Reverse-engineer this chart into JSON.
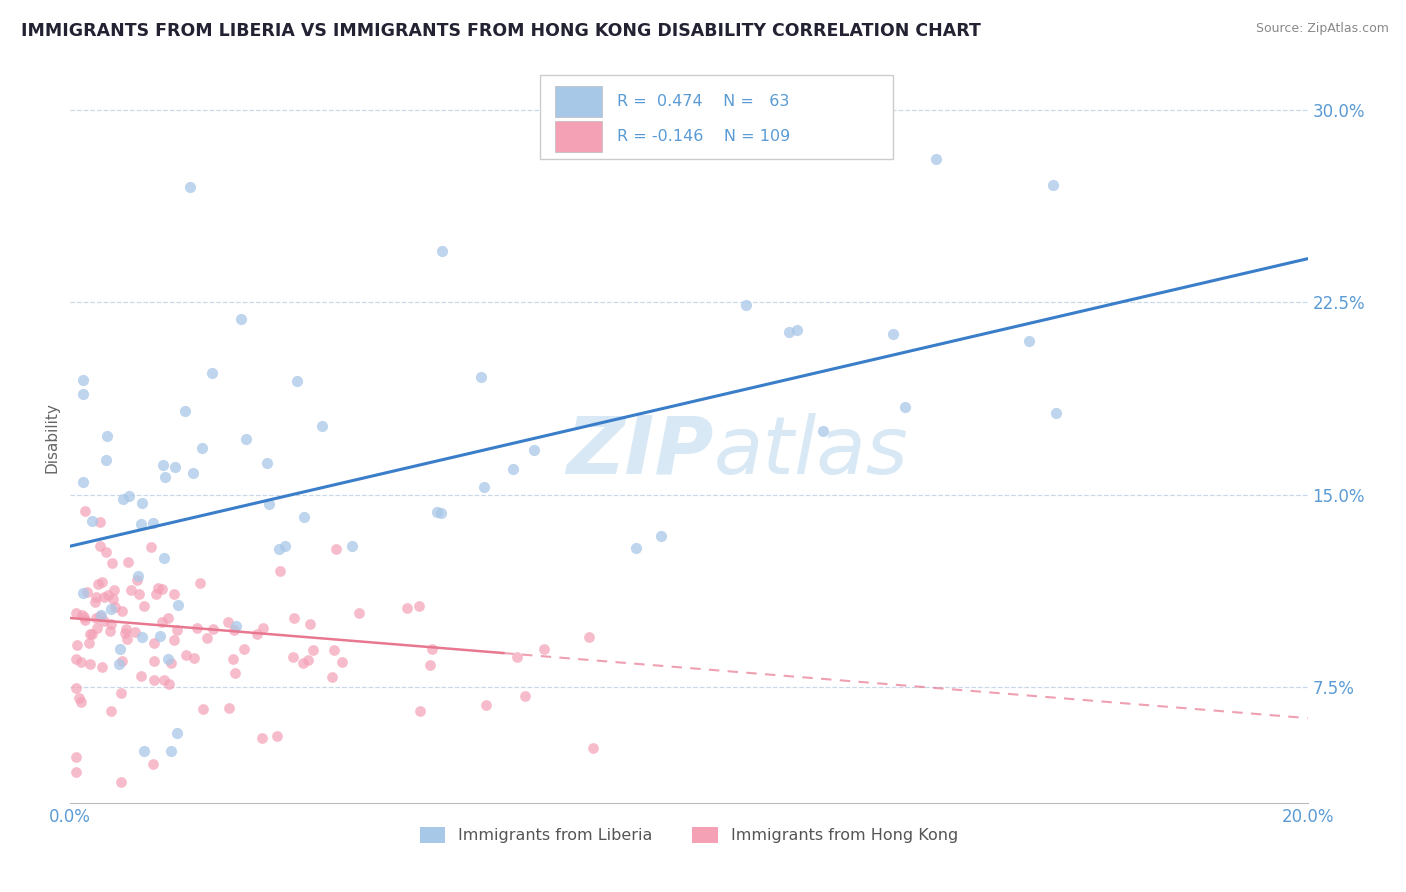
{
  "title": "IMMIGRANTS FROM LIBERIA VS IMMIGRANTS FROM HONG KONG DISABILITY CORRELATION CHART",
  "source": "Source: ZipAtlas.com",
  "ylabel": "Disability",
  "xlim": [
    0.0,
    0.2
  ],
  "ylim": [
    0.03,
    0.315
  ],
  "yticks": [
    0.075,
    0.15,
    0.225,
    0.3
  ],
  "ytick_labels": [
    "7.5%",
    "15.0%",
    "22.5%",
    "30.0%"
  ],
  "xticks": [
    0.0,
    0.2
  ],
  "xtick_labels": [
    "0.0%",
    "20.0%"
  ],
  "grid_color": "#c8d8e8",
  "background_color": "#ffffff",
  "series1_name": "Immigrants from Liberia",
  "series1_color": "#a8c8e8",
  "series1_line_color": "#3a7dc9",
  "series1_R": 0.474,
  "series1_N": 63,
  "series2_name": "Immigrants from Hong Kong",
  "series2_color": "#f4a0b5",
  "series2_line_color": "#e87890",
  "series2_R": -0.146,
  "series2_N": 109,
  "title_color": "#222233",
  "axis_tick_color": "#5b9bd5",
  "source_color": "#888888",
  "watermark_color": "#d8e8f5",
  "legend_text_color": "#5b9bd5",
  "blue_line_y0": 0.13,
  "blue_line_y1": 0.242,
  "pink_line_y0": 0.102,
  "pink_line_y1": 0.063
}
